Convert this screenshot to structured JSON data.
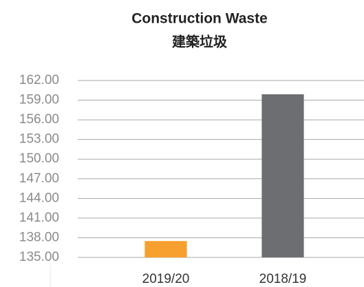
{
  "chart_data": {
    "type": "bar",
    "title": "Construction Waste",
    "subtitle": "建築垃圾",
    "categories": [
      "2019/20",
      "2018/19"
    ],
    "values": [
      137.5,
      159.9
    ],
    "colors": [
      "#f7a030",
      "#6d6e71"
    ],
    "ylim": [
      135,
      162
    ],
    "yticks": [
      {
        "value": 135,
        "label": "135.00"
      },
      {
        "value": 138,
        "label": "138.00"
      },
      {
        "value": 141,
        "label": "141.00"
      },
      {
        "value": 144,
        "label": "144.00"
      },
      {
        "value": 147,
        "label": "147.00"
      },
      {
        "value": 150,
        "label": "150.00"
      },
      {
        "value": 153,
        "label": "153.00"
      },
      {
        "value": 156,
        "label": "156.00"
      },
      {
        "value": 159,
        "label": "159.00"
      },
      {
        "value": 162,
        "label": "162.00"
      }
    ],
    "grid": true
  }
}
